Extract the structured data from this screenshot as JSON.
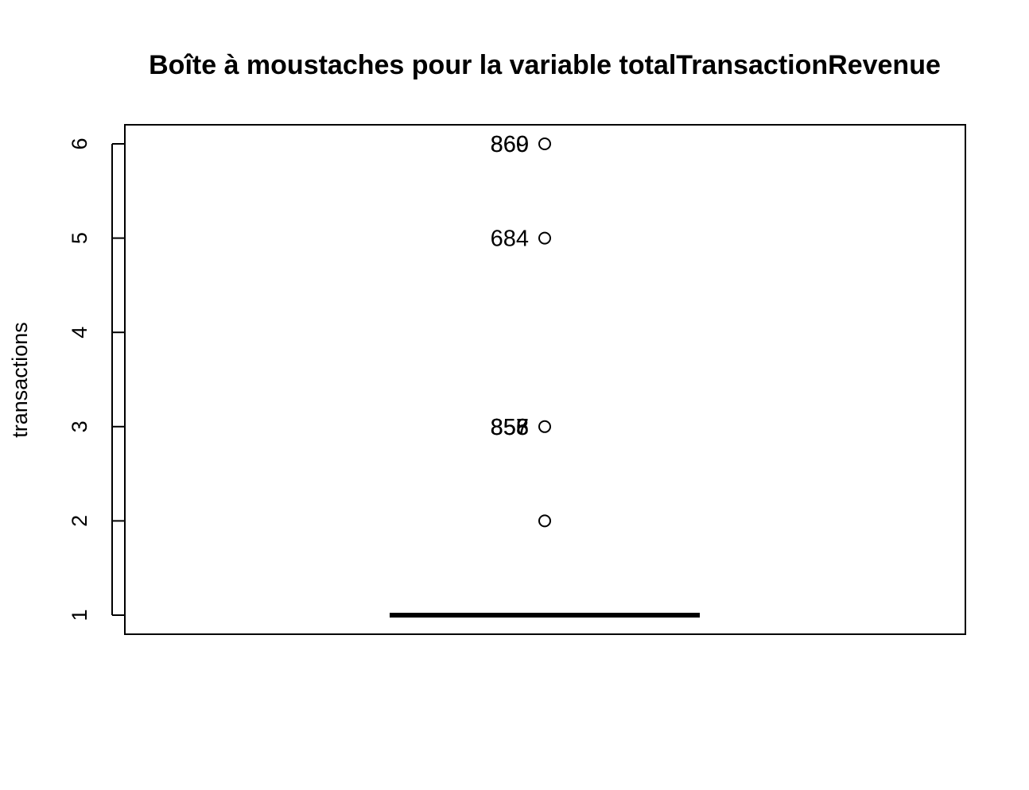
{
  "chart_data": {
    "type": "box",
    "title": "Boîte à moustaches pour la variable totalTransactionRevenue",
    "xlabel": "",
    "ylabel": "transactions",
    "ylim": [
      0.8,
      6.2
    ],
    "y_ticks": [
      "1",
      "2",
      "3",
      "4",
      "5",
      "6"
    ],
    "box": {
      "q1": 1,
      "median": 1,
      "q3": 1,
      "whisker_low": 1,
      "whisker_high": 1
    },
    "outliers": [
      {
        "y": 2,
        "labels": []
      },
      {
        "y": 3,
        "labels": [
          "856",
          "857",
          "858"
        ]
      },
      {
        "y": 5,
        "labels": [
          "684"
        ]
      },
      {
        "y": 6,
        "labels": [
          "869",
          "860"
        ]
      }
    ],
    "grid": false,
    "colors": {
      "stroke": "#000000",
      "background": "#ffffff"
    }
  }
}
